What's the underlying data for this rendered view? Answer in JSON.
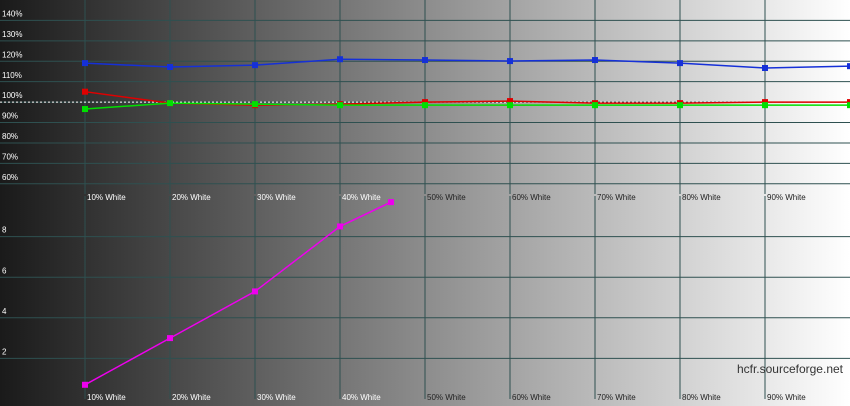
{
  "chart_data": [
    {
      "type": "line",
      "x": [
        10,
        20,
        30,
        40,
        50,
        60,
        70,
        80,
        90,
        100
      ],
      "xlim": [
        0,
        100
      ],
      "xticks": [
        {
          "value": 10,
          "label": "10% White"
        },
        {
          "value": 20,
          "label": "20% White"
        },
        {
          "value": 30,
          "label": "30% White"
        },
        {
          "value": 40,
          "label": "40% White"
        },
        {
          "value": 50,
          "label": "50% White"
        },
        {
          "value": 60,
          "label": "60% White"
        },
        {
          "value": 70,
          "label": "70% White"
        },
        {
          "value": 80,
          "label": "80% White"
        },
        {
          "value": 90,
          "label": "90% White"
        }
      ],
      "ylim": [
        55,
        150
      ],
      "yticks": [
        {
          "value": 60,
          "label": "60%"
        },
        {
          "value": 70,
          "label": "70%"
        },
        {
          "value": 80,
          "label": "80%"
        },
        {
          "value": 90,
          "label": "90%"
        },
        {
          "value": 100,
          "label": "100%"
        },
        {
          "value": 110,
          "label": "110%"
        },
        {
          "value": 120,
          "label": "120%"
        },
        {
          "value": 130,
          "label": "130%"
        },
        {
          "value": 140,
          "label": "140%"
        }
      ],
      "reference_line": 100,
      "grid": true,
      "series": [
        {
          "color": "#1530d8",
          "values": [
            119.1,
            117.2,
            118.1,
            121.0,
            120.6,
            120.1,
            120.6,
            119.1,
            116.7,
            117.6
          ]
        },
        {
          "color": "#e00000",
          "values": [
            105.1,
            99.5,
            98.5,
            99.0,
            100.0,
            100.5,
            99.5,
            99.5,
            100.0,
            100.0
          ]
        },
        {
          "color": "#00e000",
          "values": [
            96.6,
            99.5,
            99.0,
            98.5,
            98.5,
            98.5,
            98.5,
            98.5,
            98.5,
            98.5
          ]
        }
      ]
    },
    {
      "type": "line",
      "x": [
        10,
        20,
        30,
        40,
        46
      ],
      "xlim": [
        0,
        100
      ],
      "xticks": [
        {
          "value": 10,
          "label": "10% White"
        },
        {
          "value": 20,
          "label": "20% White"
        },
        {
          "value": 30,
          "label": "30% White"
        },
        {
          "value": 40,
          "label": "40% White"
        },
        {
          "value": 50,
          "label": "50% White"
        },
        {
          "value": 60,
          "label": "60% White"
        },
        {
          "value": 70,
          "label": "70% White"
        },
        {
          "value": 80,
          "label": "80% White"
        },
        {
          "value": 90,
          "label": "90% White"
        }
      ],
      "ylim": [
        0,
        10
      ],
      "yticks": [
        2,
        4,
        6,
        8
      ],
      "grid": true,
      "series": [
        {
          "color": "#ee00ee",
          "values": [
            0.7,
            3.0,
            5.3,
            8.5,
            9.7
          ]
        }
      ],
      "watermark": "hcfr.sourceforge.net"
    }
  ]
}
